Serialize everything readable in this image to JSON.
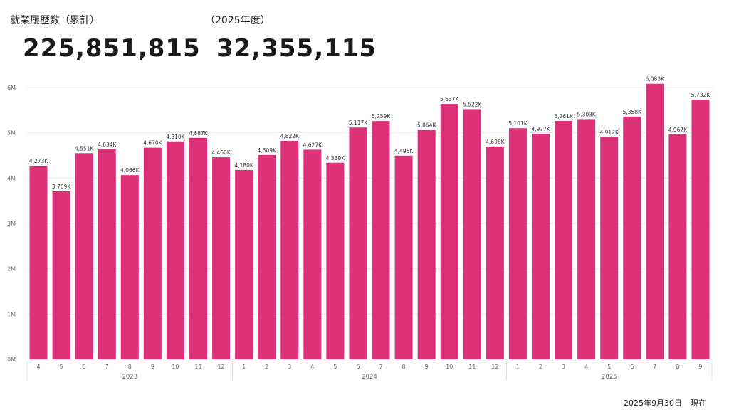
{
  "kpi": {
    "cumulative_label": "就業履歴数（累計）",
    "cumulative_value": "225,851,815",
    "fy_label": "（2025年度）",
    "fy_value": "32,355,115"
  },
  "footer": {
    "date": "2025年9月30日",
    "suffix": "現在"
  },
  "chart_data": {
    "type": "bar",
    "color": "#DD3279",
    "ylim": [
      0,
      6500000
    ],
    "yticks": [
      0,
      1000000,
      2000000,
      3000000,
      4000000,
      5000000,
      6000000
    ],
    "ytick_labels": [
      "0M",
      "1M",
      "2M",
      "3M",
      "4M",
      "5M",
      "6M"
    ],
    "categories": [
      "4",
      "5",
      "6",
      "7",
      "8",
      "9",
      "10",
      "11",
      "12",
      "1",
      "2",
      "3",
      "4",
      "5",
      "6",
      "7",
      "8",
      "9",
      "10",
      "11",
      "12",
      "1",
      "2",
      "3",
      "4",
      "5",
      "6",
      "7",
      "8",
      "9"
    ],
    "years": [
      {
        "label": "2023",
        "start": 0,
        "end": 8
      },
      {
        "label": "2024",
        "start": 9,
        "end": 20
      },
      {
        "label": "2025",
        "start": 21,
        "end": 29
      }
    ],
    "values": [
      4273000,
      3709000,
      4551000,
      4634000,
      4066000,
      4670000,
      4810000,
      4887000,
      4460000,
      4180000,
      4509000,
      4822000,
      4627000,
      4339000,
      5117000,
      5259000,
      4496000,
      5064000,
      5637000,
      5522000,
      4698000,
      5101000,
      4977000,
      5261000,
      5303000,
      4912000,
      5358000,
      6083000,
      4967000,
      5732000
    ],
    "data_labels": [
      "4,273K",
      "3,709K",
      "4,551K",
      "4,634K",
      "4,066K",
      "4,670K",
      "4,810K",
      "4,887K",
      "4,460K",
      "4,180K",
      "4,509K",
      "4,822K",
      "4,627K",
      "4,339K",
      "5,117K",
      "5,259K",
      "4,496K",
      "5,064K",
      "5,637K",
      "5,522K",
      "4,698K",
      "5,101K",
      "4,977K",
      "5,261K",
      "5,303K",
      "4,912K",
      "5,358K",
      "6,083K",
      "4,967K",
      "5,732K"
    ]
  }
}
